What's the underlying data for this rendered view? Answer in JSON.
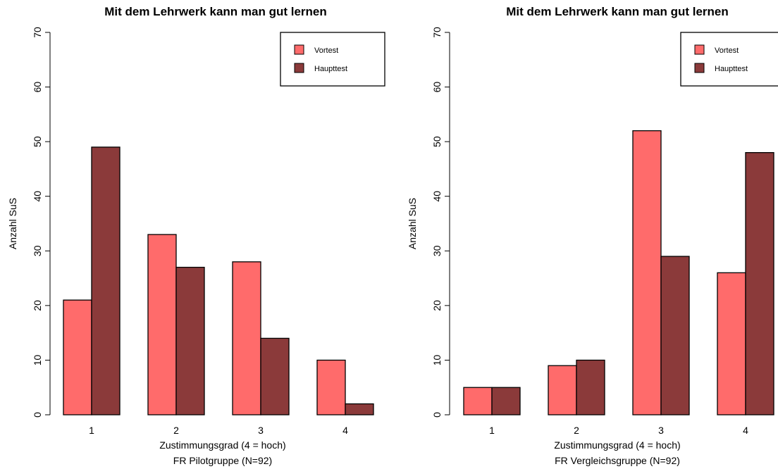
{
  "chart_data": [
    {
      "type": "bar",
      "title": "Mit dem Lehrwerk kann man gut lernen",
      "xlabel": "Zustimmungsgrad (4 = hoch)",
      "subtitle": "FR Pilotgruppe (N=92)",
      "ylabel": "Anzahl SuS",
      "categories": [
        "1",
        "2",
        "3",
        "4"
      ],
      "ylim": [
        0,
        70
      ],
      "yticks": [
        "0",
        "10",
        "20",
        "30",
        "40",
        "50",
        "60",
        "70"
      ],
      "series": [
        {
          "name": "Vortest",
          "color": "#ff6b6b",
          "values": [
            21,
            33,
            28,
            10
          ]
        },
        {
          "name": "Haupttest",
          "color": "#8b3a3a",
          "values": [
            49,
            27,
            14,
            2
          ]
        }
      ],
      "legend": "top-right",
      "grid": false
    },
    {
      "type": "bar",
      "title": "Mit dem Lehrwerk kann man gut lernen",
      "xlabel": "Zustimmungsgrad (4 = hoch)",
      "subtitle": "FR Vergleichsgruppe (N=92)",
      "ylabel": "Anzahl SuS",
      "categories": [
        "1",
        "2",
        "3",
        "4"
      ],
      "ylim": [
        0,
        70
      ],
      "yticks": [
        "0",
        "10",
        "20",
        "30",
        "40",
        "50",
        "60",
        "70"
      ],
      "series": [
        {
          "name": "Vortest",
          "color": "#ff6b6b",
          "values": [
            5,
            9,
            52,
            26
          ]
        },
        {
          "name": "Haupttest",
          "color": "#8b3a3a",
          "values": [
            5,
            10,
            29,
            48
          ]
        }
      ],
      "legend": "top-right",
      "grid": false
    }
  ]
}
